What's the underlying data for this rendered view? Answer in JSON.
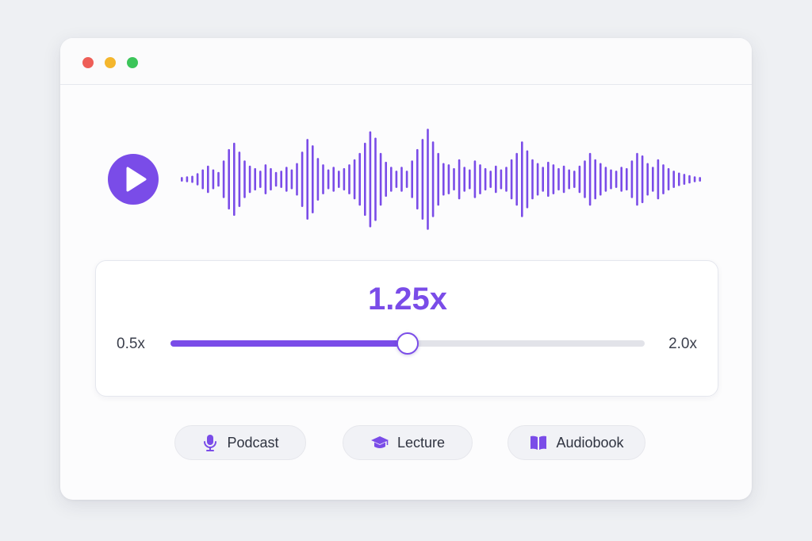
{
  "window": {
    "controls": [
      "close",
      "minimize",
      "zoom"
    ]
  },
  "player": {
    "play_icon": "play-icon",
    "accent_color": "#7a4ce8"
  },
  "speed": {
    "current_label": "1.25x",
    "min_label": "0.5x",
    "max_label": "2.0x",
    "min": 0.5,
    "max": 2.0,
    "value": 1.25
  },
  "presets": [
    {
      "label": "Podcast",
      "icon": "microphone-icon"
    },
    {
      "label": "Lecture",
      "icon": "graduation-cap-icon"
    },
    {
      "label": "Audiobook",
      "icon": "open-book-icon"
    }
  ]
}
